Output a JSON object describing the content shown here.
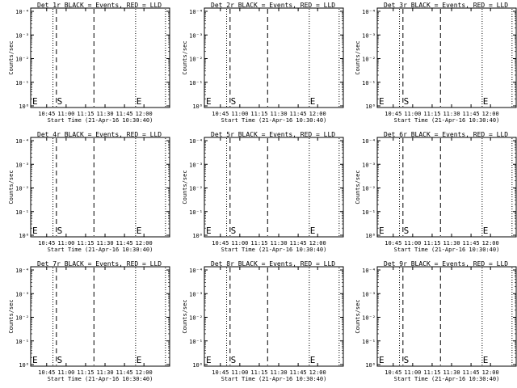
{
  "figure": {
    "ylabel": "Counts/sec",
    "xlabel": "Start Time (21-Apr-16 10:30:40)",
    "x_ticks": [
      "10:45",
      "11:00",
      "11:15",
      "11:30",
      "11:45",
      "12:00"
    ],
    "y_ticks": [
      "10⁰",
      "10⁻¹",
      "10⁻²",
      "10⁻³",
      "10⁻⁴"
    ],
    "marker_start": "S",
    "marker_end": "E",
    "marker_left": "E"
  },
  "chart_data": [
    {
      "type": "line",
      "title": "Det 1r BLACK = Events, RED = LLD",
      "xlabel": "Start Time (21-Apr-16 10:30:40)",
      "ylabel": "Counts/sec",
      "scale": "log",
      "series": []
    },
    {
      "type": "line",
      "title": "Det 2r BLACK = Events, RED = LLD",
      "xlabel": "Start Time (21-Apr-16 10:30:40)",
      "ylabel": "Counts/sec",
      "scale": "log",
      "series": []
    },
    {
      "type": "line",
      "title": "Det 3r BLACK = Events, RED = LLD",
      "xlabel": "Start Time (21-Apr-16 10:30:40)",
      "ylabel": "Counts/sec",
      "scale": "log",
      "series": []
    },
    {
      "type": "line",
      "title": "Det 4r BLACK = Events, RED = LLD",
      "xlabel": "Start Time (21-Apr-16 10:30:40)",
      "ylabel": "Counts/sec",
      "scale": "log",
      "series": []
    },
    {
      "type": "line",
      "title": "Det 5r BLACK = Events, RED = LLD",
      "xlabel": "Start Time (21-Apr-16 10:30:40)",
      "ylabel": "Counts/sec",
      "scale": "log",
      "series": []
    },
    {
      "type": "line",
      "title": "Det 6r BLACK = Events, RED = LLD",
      "xlabel": "Start Time (21-Apr-16 10:30:40)",
      "ylabel": "Counts/sec",
      "scale": "log",
      "series": []
    },
    {
      "type": "line",
      "title": "Det 7r BLACK = Events, RED = LLD",
      "xlabel": "Start Time (21-Apr-16 10:30:40)",
      "ylabel": "Counts/sec",
      "scale": "log",
      "series": []
    },
    {
      "type": "line",
      "title": "Det 8r BLACK = Events, RED = LLD",
      "xlabel": "Start Time (21-Apr-16 10:30:40)",
      "ylabel": "Counts/sec",
      "scale": "log",
      "series": []
    },
    {
      "type": "line",
      "title": "Det 9r BLACK = Events, RED = LLD",
      "xlabel": "Start Time (21-Apr-16 10:30:40)",
      "ylabel": "Counts/sec",
      "scale": "log",
      "series": []
    }
  ]
}
